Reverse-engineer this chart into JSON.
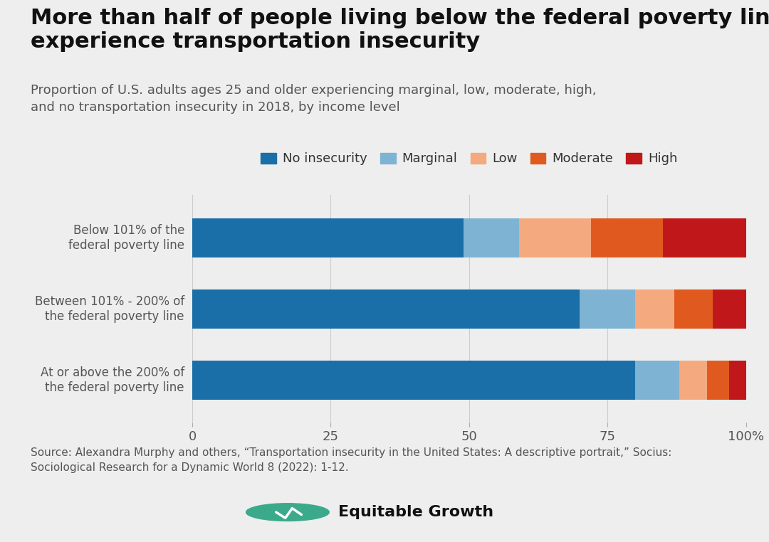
{
  "title": "More than half of people living below the federal poverty line\nexperience transportation insecurity",
  "subtitle": "Proportion of U.S. adults ages 25 and older experiencing marginal, low, moderate, high,\nand no transportation insecurity in 2018, by income level",
  "categories": [
    "Below 101% of the\nfederal poverty line",
    "Between 101% - 200% of\nthe federal poverty line",
    "At or above the 200% of\nthe federal poverty line"
  ],
  "series": {
    "No insecurity": [
      49,
      70,
      80
    ],
    "Marginal": [
      10,
      10,
      8
    ],
    "Low": [
      13,
      7,
      5
    ],
    "Moderate": [
      13,
      7,
      4
    ],
    "High": [
      15,
      6,
      3
    ]
  },
  "colors": {
    "No insecurity": "#1a6fa8",
    "Marginal": "#7fb3d3",
    "Low": "#f4a97f",
    "Moderate": "#e05a20",
    "High": "#c0181a"
  },
  "background_color": "#eeeeee",
  "source_text": "Source: Alexandra Murphy and others, “Transportation insecurity in the United States: A descriptive portrait,” Socius:\nSociological Research for a Dynamic World 8 (2022): 1-12.",
  "title_fontsize": 22,
  "subtitle_fontsize": 13,
  "tick_fontsize": 13,
  "legend_fontsize": 13,
  "ylabel_fontsize": 12,
  "source_fontsize": 11,
  "bar_height": 0.55,
  "xlim": [
    0,
    100
  ]
}
